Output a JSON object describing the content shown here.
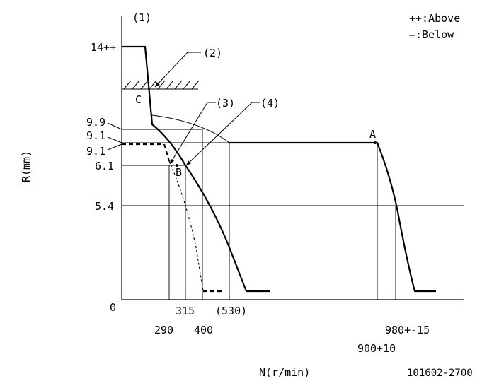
{
  "legend": {
    "above": "++:Above",
    "below": "—:Below"
  },
  "axes": {
    "x_label": "N(r/min)",
    "y_label": "R(mm)",
    "origin": "0"
  },
  "y_ticks": [
    "14++",
    "9.9",
    "9.1",
    "9.1",
    "6.1",
    "5.4"
  ],
  "x_ticks": [
    "290",
    "315",
    "400",
    "(530)",
    "900+10",
    "980+-15"
  ],
  "callouts": [
    "(1)",
    "(2)",
    "(3)",
    "(4)"
  ],
  "points": [
    "A",
    "B",
    "C"
  ],
  "part_number": "101602-2700"
}
